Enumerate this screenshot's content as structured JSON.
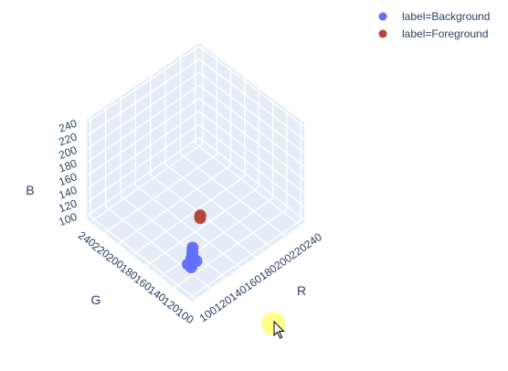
{
  "chart_data": {
    "type": "scatter3d",
    "title": "",
    "axes": {
      "x": {
        "label": "R",
        "range": [
          95,
          245
        ],
        "ticks": [
          100,
          120,
          140,
          160,
          180,
          200,
          220,
          240
        ]
      },
      "y": {
        "label": "G",
        "range": [
          95,
          245
        ],
        "ticks": [
          100,
          120,
          140,
          160,
          180,
          200,
          220,
          240
        ]
      },
      "z": {
        "label": "B",
        "range": [
          95,
          245
        ],
        "ticks": [
          100,
          120,
          140,
          160,
          180,
          200,
          220,
          240
        ]
      }
    },
    "series": [
      {
        "name": "label=Background",
        "color": "#636efa",
        "marker": "circle",
        "points": [
          {
            "x": 110,
            "y": 112,
            "z": 120
          },
          {
            "x": 112,
            "y": 114,
            "z": 121
          },
          {
            "x": 114,
            "y": 116,
            "z": 123
          },
          {
            "x": 116,
            "y": 118,
            "z": 124
          },
          {
            "x": 118,
            "y": 119,
            "z": 125
          },
          {
            "x": 120,
            "y": 121,
            "z": 126
          },
          {
            "x": 122,
            "y": 123,
            "z": 127
          },
          {
            "x": 111,
            "y": 118,
            "z": 119
          },
          {
            "x": 117,
            "y": 112,
            "z": 124
          },
          {
            "x": 124,
            "y": 125,
            "z": 128
          }
        ]
      },
      {
        "name": "label=Foreground",
        "color": "#b5443a",
        "marker": "circle",
        "points": [
          {
            "x": 150,
            "y": 142,
            "z": 138
          },
          {
            "x": 151,
            "y": 143,
            "z": 139
          },
          {
            "x": 152,
            "y": 144,
            "z": 139
          }
        ]
      }
    ],
    "legend": {
      "position": "top-right"
    },
    "grid": true
  },
  "cursor": {
    "icon": "arrow-pointer-icon",
    "highlight_color": "#ffff66"
  }
}
